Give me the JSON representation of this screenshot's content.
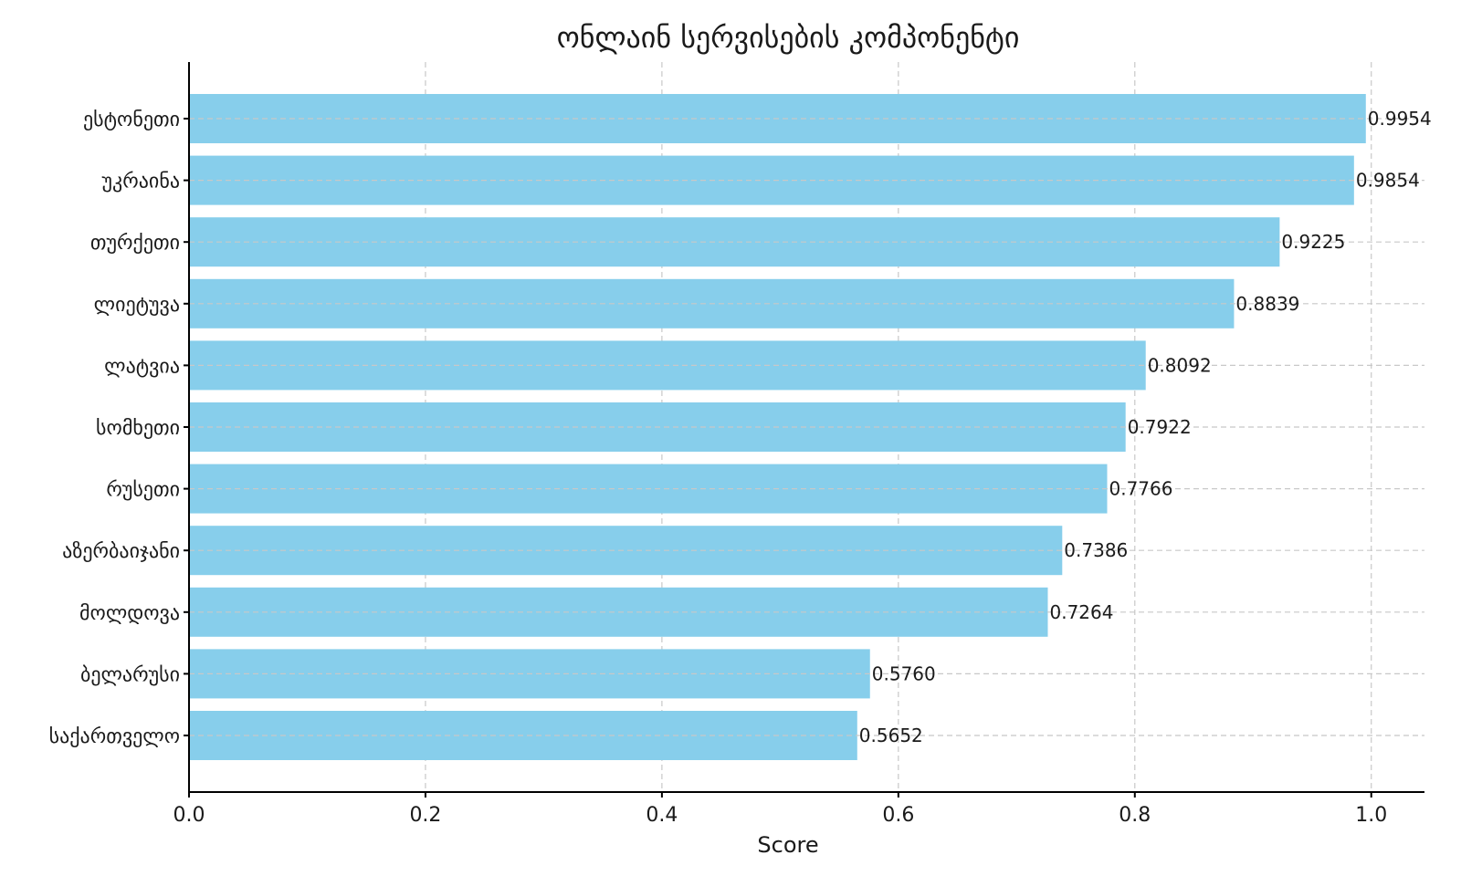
{
  "chart_data": {
    "type": "bar",
    "orientation": "horizontal",
    "title": "ონლაინ სერვისების კომპონენტი",
    "xlabel": "Score",
    "ylabel": "",
    "xlim": [
      0.0,
      1.045
    ],
    "xticks": [
      0.0,
      0.2,
      0.4,
      0.6,
      0.8,
      1.0
    ],
    "xtick_labels": [
      "0.0",
      "0.2",
      "0.4",
      "0.6",
      "0.8",
      "1.0"
    ],
    "grid": true,
    "bar_color": "#87CEEB",
    "categories": [
      "ესტონეთი",
      "უკრაინა",
      "თურქეთი",
      "ლიეტუვა",
      "ლატვია",
      "სომხეთი",
      "რუსეთი",
      "აზერბაიჯანი",
      "მოლდოვა",
      "ბელარუსი",
      "საქართველო"
    ],
    "values": [
      0.9954,
      0.9854,
      0.9225,
      0.8839,
      0.8092,
      0.7922,
      0.7766,
      0.7386,
      0.7264,
      0.576,
      0.5652
    ],
    "value_labels": [
      "0.9954",
      "0.9854",
      "0.9225",
      "0.8839",
      "0.8092",
      "0.7922",
      "0.7766",
      "0.7386",
      "0.7264",
      "0.5760",
      "0.5652"
    ]
  }
}
